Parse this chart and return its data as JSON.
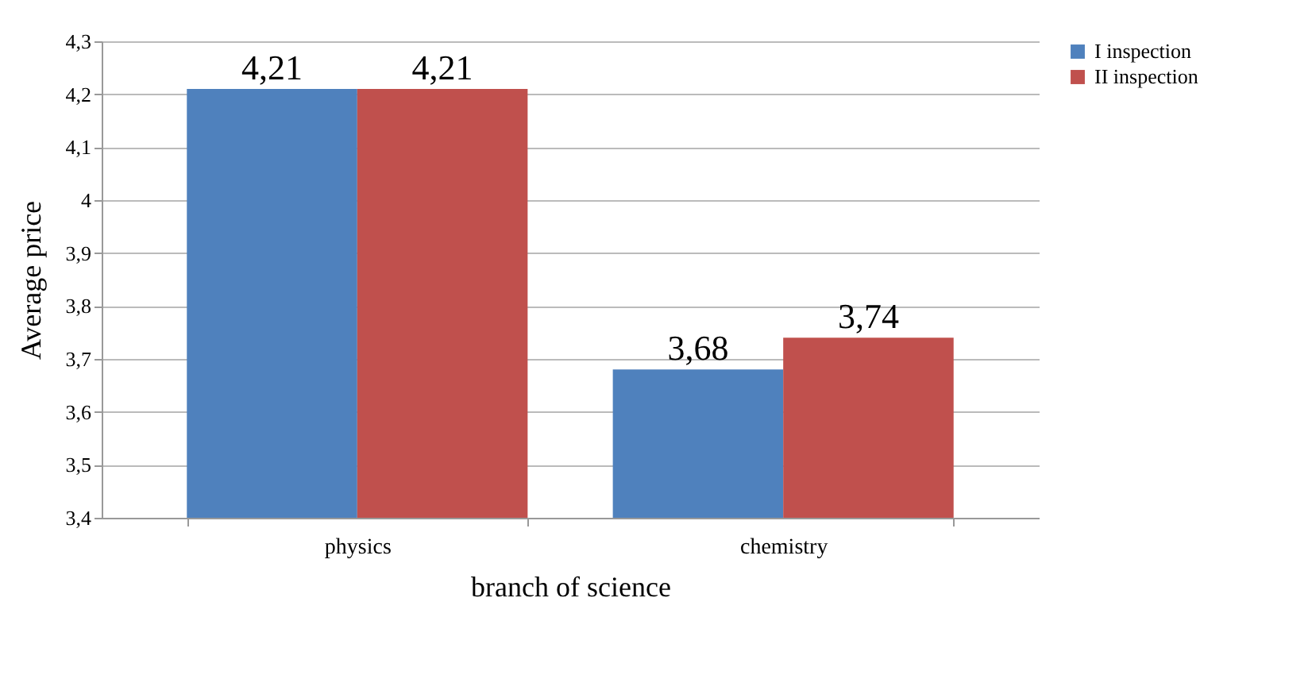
{
  "chart_data": {
    "type": "bar",
    "xlabel": "branch of science",
    "ylabel": "Average price",
    "categories": [
      "physics",
      "chemistry"
    ],
    "series": [
      {
        "name": "I inspection",
        "color": "#4f81bd",
        "values": [
          4.21,
          3.68
        ],
        "value_labels": [
          "4,21",
          "3,68"
        ]
      },
      {
        "name": "II inspection",
        "color": "#c0504d",
        "values": [
          4.21,
          3.74
        ],
        "value_labels": [
          "4,21",
          "3,74"
        ]
      }
    ],
    "ylim": [
      3.4,
      4.3
    ],
    "yticks": [
      {
        "value": 3.4,
        "label": "3,4"
      },
      {
        "value": 3.5,
        "label": "3,5"
      },
      {
        "value": 3.6,
        "label": "3,6"
      },
      {
        "value": 3.7,
        "label": "3,7"
      },
      {
        "value": 3.8,
        "label": "3,8"
      },
      {
        "value": 3.9,
        "label": "3,9"
      },
      {
        "value": 4,
        "label": "4"
      },
      {
        "value": 4.1,
        "label": "4,1"
      },
      {
        "value": 4.2,
        "label": "4,2"
      },
      {
        "value": 4.3,
        "label": "4,3"
      }
    ],
    "grid": "y",
    "legend": "right"
  }
}
